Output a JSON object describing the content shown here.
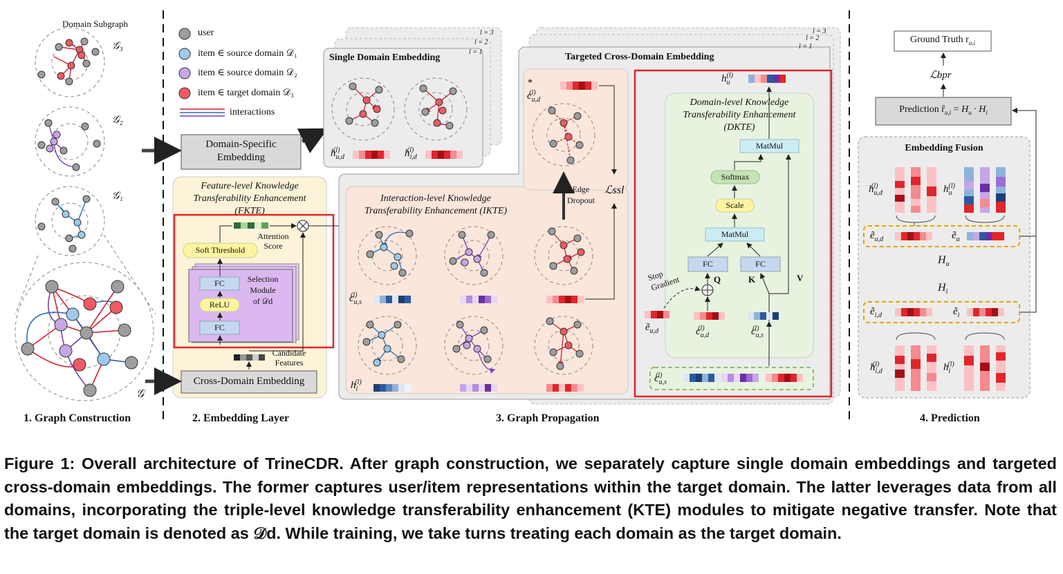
{
  "sections": {
    "graph_construction": "1. Graph Construction",
    "embedding_layer": "2. Embedding Layer",
    "graph_propagation": "3. Graph Propagation",
    "prediction": "4. Prediction"
  },
  "graph_construction": {
    "domain_subgraph": "Domain Subgraph",
    "g3": "𝒢₃",
    "g2": "𝒢₂",
    "g1": "𝒢₁",
    "g": "𝒢"
  },
  "legend": {
    "user": "user",
    "item_d1": "item ∈ source domain 𝒟₁",
    "item_d2": "item ∈ source domain 𝒟₂",
    "item_d3": "item ∈ target domain 𝒟₃",
    "interactions": "interactions"
  },
  "embedding_layer": {
    "domain_specific": [
      "Domain-Specific",
      "Embedding"
    ],
    "cross_domain": "Cross-Domain Embedding",
    "fkte_title": [
      "Feature-level Knowledge",
      "Transferability Enhancement",
      "(FKTE)"
    ],
    "soft_threshold": "Soft Threshold",
    "fc": "FC",
    "relu": "ReLU",
    "selection_module": [
      "Selection",
      "Module",
      "of 𝒟d"
    ],
    "attention_score": [
      "Attention",
      "Score"
    ],
    "candidate_features": [
      "Candidate",
      "Features"
    ]
  },
  "single_domain": {
    "title": "Single Domain Embedding",
    "layers": [
      "l = 3",
      "l = 2",
      "l = 1"
    ],
    "h_ud": "h",
    "h_id": "h"
  },
  "ikte": {
    "title": [
      "Interaction-level Knowledge",
      "Transferability Enhancement (IKTE)"
    ],
    "c_us": "c",
    "h_i": "h"
  },
  "targeted": {
    "title": "Targeted Cross-Domain Embedding",
    "layers": [
      "l = 3",
      "l = 2",
      "l = 1"
    ],
    "c_ud": "c",
    "edge_dropout": [
      "Edge",
      "Dropout"
    ],
    "l_ssl": "ℒssl"
  },
  "dkte": {
    "title": [
      "Domain-level Knowledge",
      "Transferability Enhancement",
      "(DKTE)"
    ],
    "matmul": "MatMul",
    "softmax": "Softmax",
    "scale": "Scale",
    "fc": "FC",
    "q": "Q",
    "k": "K",
    "v": "V",
    "stop_gradient": [
      "Stop",
      "Gradient"
    ]
  },
  "prediction": {
    "ground_truth": "Ground Truth r",
    "l_bpr": "ℒbpr",
    "prediction": "Prediction r̂",
    "embedding_fusion": "Embedding Fusion",
    "h_u": "H",
    "h_i": "H"
  },
  "caption": "Figure 1: Overall architecture of TrineCDR. After graph construction, we separately capture single domain embeddings and targeted cross-domain embeddings. The former captures user/item representations within the target domain. The latter leverages data from all domains, incorporating the triple-level knowledge transferability enhancement (KTE) modules to mitigate negative transfer. Note that the target domain is denoted as 𝒟d. While training, we take turns treating each domain as the target domain.",
  "colors": {
    "user": "#9e9e9e",
    "source1": "#9ec9ea",
    "source2": "#c7a6e6",
    "target": "#ef5a63",
    "fkte_bg": "#fdf3d8",
    "ikte_bg": "#fbe6dc",
    "dkte_bg": "#e8f3df",
    "highlight": "#e0262b"
  }
}
